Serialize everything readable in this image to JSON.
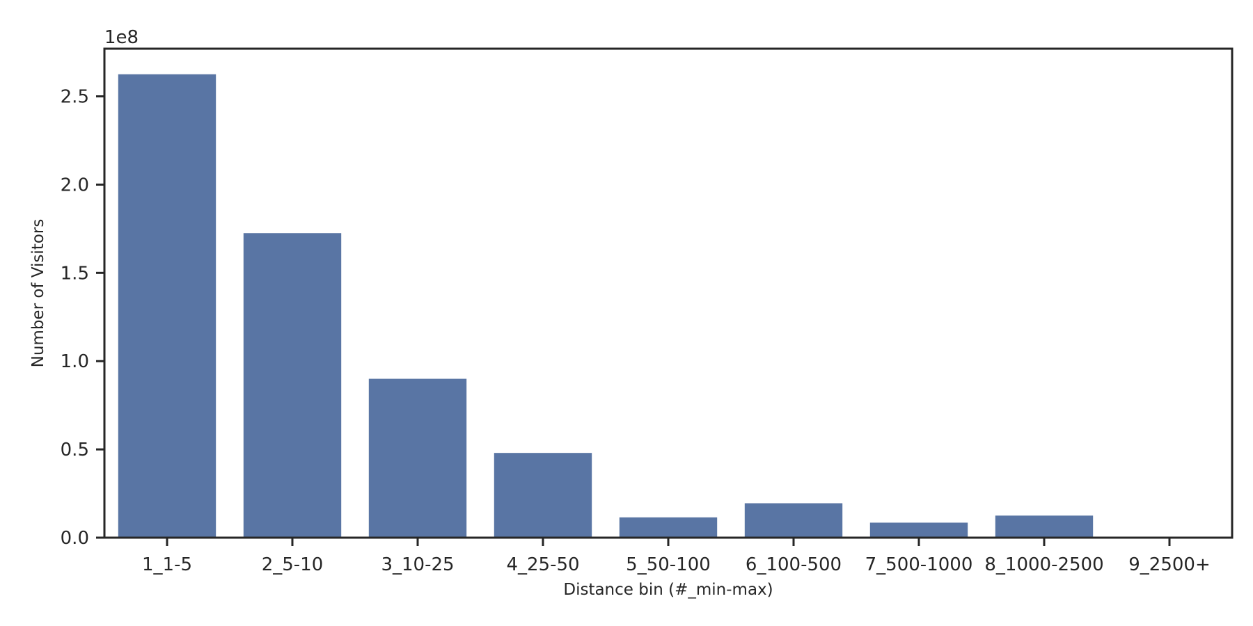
{
  "chart_data": {
    "type": "bar",
    "title": "",
    "xlabel": "Distance bin (#_min-max)",
    "ylabel": "Number of Visitors",
    "y_offset_label": "1e8",
    "y_scale": 100000000,
    "categories": [
      "1_1-5",
      "2_5-10",
      "3_10-25",
      "4_25-50",
      "5_50-100",
      "6_100-500",
      "7_500-1000",
      "8_1000-2500",
      "9_2500+"
    ],
    "values": [
      262500000,
      172500000,
      90000000,
      48000000,
      11500000,
      19500000,
      8500000,
      12500000,
      0
    ],
    "ylim": [
      0,
      277000000
    ],
    "yticks": [
      0,
      50000000,
      100000000,
      150000000,
      200000000,
      250000000
    ],
    "ytick_labels": [
      "0.0",
      "0.5",
      "1.0",
      "1.5",
      "2.0",
      "2.5"
    ],
    "bar_color": "#5975a4",
    "axis_color": "#262626",
    "grid": false,
    "legend": "none"
  }
}
